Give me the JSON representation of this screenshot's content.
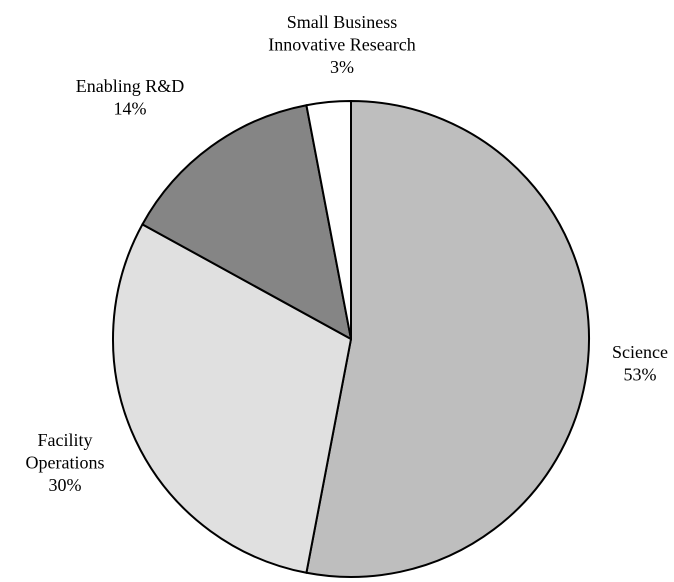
{
  "chart_data": {
    "type": "pie",
    "title": "",
    "slices": [
      {
        "label_lines": [
          "Science"
        ],
        "value": 53,
        "value_label": "53%",
        "color": "#bebebe"
      },
      {
        "label_lines": [
          "Facility",
          "Operations"
        ],
        "value": 30,
        "value_label": "30%",
        "color": "#e0e0e0"
      },
      {
        "label_lines": [
          "Enabling R&D"
        ],
        "value": 14,
        "value_label": "14%",
        "color": "#858585"
      },
      {
        "label_lines": [
          "Small Business",
          "Innovative Research"
        ],
        "value": 3,
        "value_label": "3%",
        "color": "#ffffff"
      }
    ],
    "start_angle": "12 o'clock",
    "direction": "clockwise",
    "legend": "none",
    "outline": "#000000"
  }
}
